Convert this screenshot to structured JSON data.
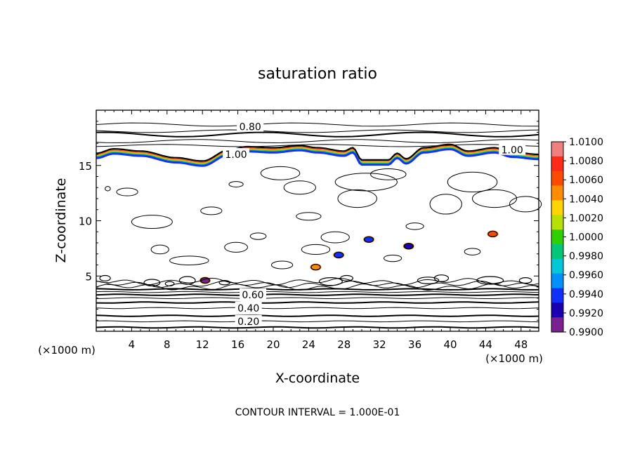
{
  "chart_data": {
    "type": "contour",
    "title": "saturation ratio",
    "xlabel": "X-coordinate",
    "ylabel": "Z-coordinate",
    "x_unit": "(×1000 m)",
    "y_unit": "(×1000 m)",
    "xlim": [
      0,
      50
    ],
    "ylim": [
      0,
      20
    ],
    "x_ticks": [
      "4",
      "8",
      "12",
      "16",
      "20",
      "24",
      "28",
      "32",
      "36",
      "40",
      "44",
      "48"
    ],
    "y_ticks": [
      "5",
      "10",
      "15"
    ],
    "contour_interval_text": "CONTOUR INTERVAL = 1.000E-01",
    "contour_labels": [
      {
        "text": "0.20",
        "x": 17.2,
        "y": 0.9
      },
      {
        "text": "0.40",
        "x": 17.2,
        "y": 2.1
      },
      {
        "text": "0.60",
        "x": 17.7,
        "y": 3.3
      },
      {
        "text": "0.80",
        "x": 17.4,
        "y": 18.5
      },
      {
        "text": "1.00",
        "x": 15.8,
        "y": 16.0
      },
      {
        "text": "1.00",
        "x": 47.0,
        "y": 16.4
      }
    ],
    "colorbar": {
      "ticks": [
        "1.0100",
        "1.0080",
        "1.0060",
        "1.0040",
        "1.0020",
        "1.0000",
        "0.9980",
        "0.9960",
        "0.9940",
        "0.9920",
        "0.9900"
      ],
      "colors": [
        "#f08080",
        "#ff2a1a",
        "#ff4a00",
        "#ff8c00",
        "#ffd400",
        "#b8e000",
        "#30d000",
        "#00c878",
        "#00c8d8",
        "#0090ff",
        "#1030ff",
        "#1a00b0",
        "#7a2090"
      ]
    },
    "tropopause_z": [
      16.1,
      16.5,
      16.3,
      15.7,
      15.4,
      16.4,
      16.7,
      16.6,
      16.8,
      16.6,
      16.3,
      16.6,
      15.5,
      15.5,
      16.1,
      15.6,
      16.6,
      16.9,
      16.3,
      16.6,
      16.2,
      16.0
    ],
    "tropopause_x": [
      0,
      2,
      5,
      9,
      12,
      15,
      17,
      20,
      23,
      25,
      28,
      29,
      30,
      33,
      34,
      35,
      37,
      40,
      42,
      45,
      47,
      50
    ],
    "cells": [
      {
        "x": 12.3,
        "y": 4.6,
        "value": 0.992
      },
      {
        "x": 30.8,
        "y": 8.3,
        "value": 0.994
      },
      {
        "x": 35.3,
        "y": 7.7,
        "value": 0.993
      },
      {
        "x": 27.4,
        "y": 6.9,
        "value": 0.995
      },
      {
        "x": 44.8,
        "y": 8.8,
        "value": 1.008
      },
      {
        "x": 24.8,
        "y": 5.8,
        "value": 1.006
      }
    ]
  }
}
